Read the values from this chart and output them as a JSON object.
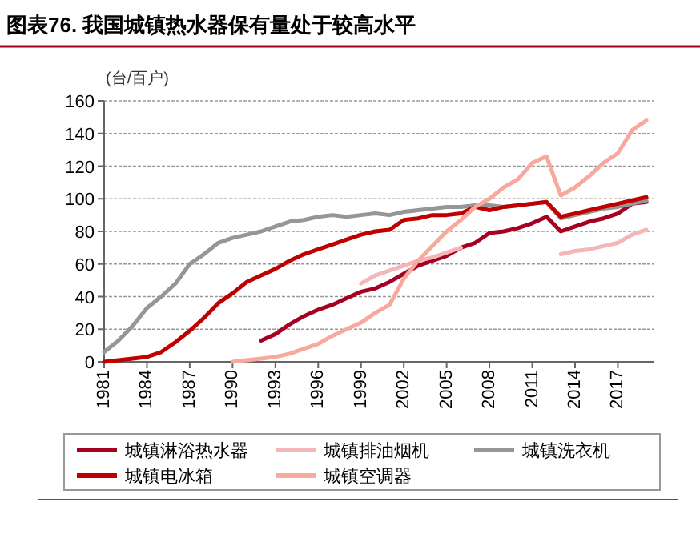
{
  "chart_data": {
    "type": "line",
    "title": "图表76. 我国城镇热水器保有量处于较高水平",
    "ylabel": "(台/百户)",
    "xlim": [
      1981,
      2019.5
    ],
    "xticks": [
      1981,
      1984,
      1987,
      1990,
      1993,
      1996,
      1999,
      2002,
      2005,
      2008,
      2011,
      2014,
      2017
    ],
    "ylim": [
      0,
      160
    ],
    "yticks": [
      0,
      20,
      40,
      60,
      80,
      100,
      120,
      140,
      160
    ],
    "grid": "y",
    "legend": "bottom",
    "marker": "none",
    "line_style": "solid",
    "series": [
      {
        "name": "城镇淋浴热水器",
        "color": "#a50021",
        "x": [
          1992,
          1993,
          1994,
          1995,
          1996,
          1997,
          1998,
          1999,
          2000,
          2001,
          2002,
          2003,
          2004,
          2005,
          2006,
          2007,
          2008,
          2009,
          2010,
          2011,
          2012,
          2013,
          2014,
          2015,
          2016,
          2017,
          2018,
          2019
        ],
        "values": [
          13,
          17,
          23,
          28,
          32,
          35,
          39,
          43,
          45,
          49,
          54,
          59,
          62,
          65,
          70,
          73,
          79,
          80,
          82,
          85,
          89,
          80,
          83,
          86,
          88,
          91,
          97,
          98
        ]
      },
      {
        "name": "城镇排油烟机",
        "color": "#f4b6b6",
        "x": [
          1999,
          2000,
          2001,
          2002,
          2003,
          2004,
          2005,
          2006,
          2007,
          2008,
          2009,
          2010,
          2011,
          2012,
          2013,
          2014,
          2015,
          2016,
          2017,
          2018,
          2019
        ],
        "values": [
          48,
          53,
          56,
          59,
          62,
          64,
          67,
          70,
          null,
          null,
          null,
          null,
          null,
          null,
          66,
          68,
          69,
          71,
          73,
          78,
          81
        ]
      },
      {
        "name": "城镇洗衣机",
        "color": "#969696",
        "x": [
          1981,
          1982,
          1983,
          1984,
          1985,
          1986,
          1987,
          1988,
          1989,
          1990,
          1991,
          1992,
          1993,
          1994,
          1995,
          1996,
          1997,
          1998,
          1999,
          2000,
          2001,
          2002,
          2003,
          2004,
          2005,
          2006,
          2007,
          2008,
          2009,
          2010,
          2011,
          2012,
          2013,
          2014,
          2015,
          2016,
          2017,
          2018,
          2019
        ],
        "values": [
          6,
          13,
          22,
          33,
          40,
          48,
          60,
          66,
          73,
          76,
          78,
          80,
          83,
          86,
          87,
          89,
          90,
          89,
          90,
          91,
          90,
          92,
          93,
          94,
          95,
          95,
          96,
          96,
          95,
          96,
          97,
          98,
          88,
          90,
          92,
          94,
          95,
          97,
          99
        ]
      },
      {
        "name": "城镇电冰箱",
        "color": "#c00000",
        "x": [
          1981,
          1982,
          1983,
          1984,
          1985,
          1986,
          1987,
          1988,
          1989,
          1990,
          1991,
          1992,
          1993,
          1994,
          1995,
          1996,
          1997,
          1998,
          1999,
          2000,
          2001,
          2002,
          2003,
          2004,
          2005,
          2006,
          2007,
          2008,
          2009,
          2010,
          2011,
          2012,
          2013,
          2014,
          2015,
          2016,
          2017,
          2018,
          2019
        ],
        "values": [
          0,
          1,
          2,
          3,
          6,
          12,
          19,
          27,
          36,
          42,
          49,
          53,
          57,
          62,
          66,
          69,
          72,
          75,
          78,
          80,
          81,
          87,
          88,
          90,
          90,
          91,
          95,
          93,
          95,
          96,
          97,
          98,
          89,
          91,
          93,
          95,
          97,
          99,
          101
        ]
      },
      {
        "name": "城镇空调器",
        "color": "#f8a89c",
        "x": [
          1990,
          1991,
          1992,
          1993,
          1994,
          1995,
          1996,
          1997,
          1998,
          1999,
          2000,
          2001,
          2002,
          2003,
          2004,
          2005,
          2006,
          2007,
          2008,
          2009,
          2010,
          2011,
          2012,
          2013,
          2014,
          2015,
          2016,
          2017,
          2018,
          2019
        ],
        "values": [
          0,
          1,
          2,
          3,
          5,
          8,
          11,
          16,
          20,
          24,
          30,
          35,
          51,
          62,
          71,
          80,
          87,
          95,
          100,
          107,
          112,
          122,
          126,
          102,
          107,
          114,
          122,
          128,
          142,
          148
        ]
      }
    ]
  }
}
